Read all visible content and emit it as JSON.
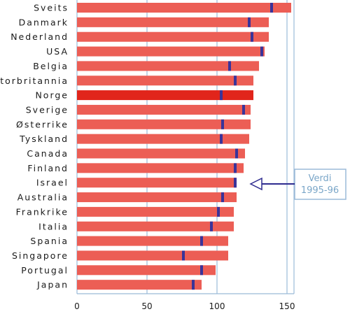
{
  "chart_data": {
    "type": "bar",
    "orientation": "horizontal",
    "categories": [
      "Sveits",
      "Danmark",
      "Nederland",
      "USA",
      "Belgia",
      "Storbritannia",
      "Norge",
      "Sverige",
      "Østerrike",
      "Tyskland",
      "Canada",
      "Finland",
      "Israel",
      "Australia",
      "Frankrike",
      "Italia",
      "Spania",
      "Singapore",
      "Portugal",
      "Japan"
    ],
    "series": [
      {
        "values": [
          153,
          137,
          137,
          134,
          130,
          126,
          126,
          124,
          124,
          123,
          120,
          119,
          114,
          114,
          112,
          112,
          108,
          108,
          99,
          89
        ]
      }
    ],
    "markers": {
      "values": [
        139,
        123,
        125,
        132,
        109,
        113,
        103,
        119,
        104,
        103,
        114,
        113,
        113,
        104,
        101,
        96,
        89,
        76,
        89,
        83
      ]
    },
    "highlight_category": "Norge",
    "xlim": [
      0,
      150
    ],
    "xticks": [
      "0",
      "50",
      "100",
      "150"
    ],
    "grid": "vertical",
    "annotation": {
      "line1": "Verdi",
      "line2": "1995-96"
    },
    "colors": {
      "bar": "#ec5e55",
      "bar_highlight": "#e1251b",
      "marker": "#3a3399",
      "grid": "#9bbad8",
      "frame": "#9bbad8",
      "arrow": "#2e2b8f",
      "annotation_text": "#7aa6c8",
      "annotation_border": "#9bbad8"
    }
  }
}
